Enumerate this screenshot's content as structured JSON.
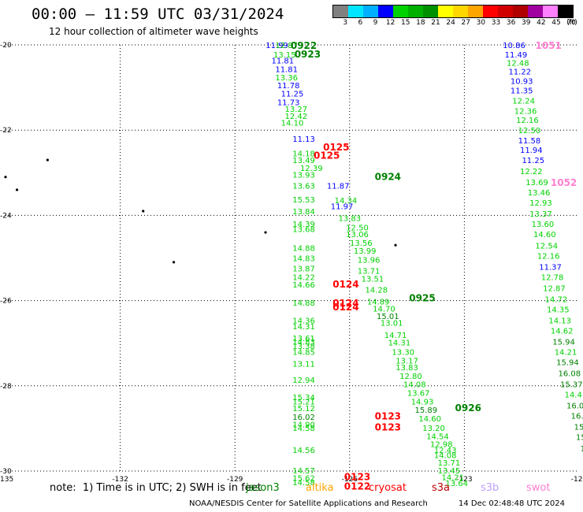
{
  "title": "00:00 – 11:59 UTC 03/31/2024",
  "subtitle": "12 hour collection of altimeter wave heights",
  "colorbar": {
    "unit_label": "(ft)",
    "ticks": [
      "3",
      "6",
      "9",
      "12",
      "15",
      "18",
      "21",
      "24",
      "27",
      "30",
      "33",
      "36",
      "39",
      "42",
      "45",
      "70"
    ],
    "colors": [
      "#808080",
      "#00e5ff",
      "#00b0ff",
      "#0000ff",
      "#00d100",
      "#00b000",
      "#009000",
      "#ffff00",
      "#ffd700",
      "#ffa500",
      "#ff0000",
      "#d00000",
      "#b00000",
      "#a000a0",
      "#ff80ff",
      "#000000"
    ]
  },
  "axes": {
    "x_labels": [
      "-135",
      "-132",
      "-129",
      "-126",
      "-123",
      "-120"
    ],
    "y_labels": [
      "-20",
      "-22",
      "-24",
      "-26",
      "-28",
      "-30"
    ],
    "lon_range": [
      -135,
      -120
    ],
    "lat_range": [
      -30,
      -20
    ]
  },
  "satellites": {
    "jason3": "#008000",
    "altika": "#ffa500",
    "cryosat": "#ff0000",
    "s3a": "#c00000",
    "s3b": "#c0a0ff",
    "swot": "#ff80d0"
  },
  "islands": [
    {
      "lon": -133.9,
      "lat": -22.7
    },
    {
      "lon": -135.0,
      "lat": -23.1
    },
    {
      "lon": -134.7,
      "lat": -23.4
    },
    {
      "lon": -131.4,
      "lat": -23.9
    },
    {
      "lon": -128.2,
      "lat": -24.4
    },
    {
      "lon": -130.6,
      "lat": -25.1
    },
    {
      "lon": -124.8,
      "lat": -24.7
    }
  ],
  "tracks": [
    {
      "points": [
        {
          "lon": -127.9,
          "lat": -20.0,
          "t": "11.99",
          "c": "#0000ff"
        },
        {
          "lon": -127.65,
          "lat": -20.0,
          "t": "12.87",
          "c": "#00b000"
        },
        {
          "lon": -127.7,
          "lat": -20.22,
          "t": "13.15",
          "c": "#00d100"
        },
        {
          "lon": -127.75,
          "lat": -20.36,
          "t": "11.81",
          "c": "#0000ff"
        },
        {
          "lon": -127.65,
          "lat": -20.56,
          "t": "11.81",
          "c": "#0000ff"
        },
        {
          "lon": -127.65,
          "lat": -20.76,
          "t": "13.36",
          "c": "#00d100"
        },
        {
          "lon": -127.6,
          "lat": -20.94,
          "t": "11.78",
          "c": "#0000ff"
        },
        {
          "lon": -127.5,
          "lat": -21.14,
          "t": "11.25",
          "c": "#0000ff"
        },
        {
          "lon": -127.6,
          "lat": -21.34,
          "t": "11.73",
          "c": "#0000ff"
        },
        {
          "lon": -127.4,
          "lat": -21.5,
          "t": "13.27",
          "c": "#00d100"
        },
        {
          "lon": -127.4,
          "lat": -21.66,
          "t": "12.42",
          "c": "#00d100"
        },
        {
          "lon": -127.5,
          "lat": -21.82,
          "t": "14.10",
          "c": "#00d100"
        },
        {
          "lon": -127.2,
          "lat": -22.2,
          "t": "11.13",
          "c": "#0000ff"
        },
        {
          "lon": -127.2,
          "lat": -22.54,
          "t": "14.18",
          "c": "#00d100"
        },
        {
          "lon": -127.2,
          "lat": -22.7,
          "t": "13.49",
          "c": "#00d100"
        },
        {
          "lon": -127.0,
          "lat": -22.88,
          "t": "12.39",
          "c": "#00d100"
        },
        {
          "lon": -127.2,
          "lat": -23.04,
          "t": "13.93",
          "c": "#00d100"
        },
        {
          "lon": -127.2,
          "lat": -23.3,
          "t": "13.63",
          "c": "#00d100"
        },
        {
          "lon": -126.3,
          "lat": -23.3,
          "t": "11.87",
          "c": "#0000ff"
        },
        {
          "lon": -126.1,
          "lat": -23.64,
          "t": "14.34",
          "c": "#00d100"
        },
        {
          "lon": -127.2,
          "lat": -23.62,
          "t": "15.53",
          "c": "#00d100"
        },
        {
          "lon": -126.2,
          "lat": -23.78,
          "t": "11.97",
          "c": "#0000ff"
        },
        {
          "lon": -127.2,
          "lat": -23.9,
          "t": "13.84",
          "c": "#00d100"
        },
        {
          "lon": -126.0,
          "lat": -24.06,
          "t": "13.83",
          "c": "#00d100"
        },
        {
          "lon": -127.2,
          "lat": -24.2,
          "t": "14.39",
          "c": "#00d100"
        },
        {
          "lon": -127.2,
          "lat": -24.32,
          "t": "13.68",
          "c": "#00d100"
        },
        {
          "lon": -125.8,
          "lat": -24.28,
          "t": "12.50",
          "c": "#00d100"
        },
        {
          "lon": -125.8,
          "lat": -24.44,
          "t": "13.06",
          "c": "#00d100"
        },
        {
          "lon": -125.7,
          "lat": -24.64,
          "t": "13.56",
          "c": "#00d100"
        },
        {
          "lon": -127.2,
          "lat": -24.76,
          "t": "14.88",
          "c": "#00d100"
        },
        {
          "lon": -125.6,
          "lat": -24.82,
          "t": "13.99",
          "c": "#00d100"
        },
        {
          "lon": -127.2,
          "lat": -25.0,
          "t": "14.83",
          "c": "#00d100"
        },
        {
          "lon": -125.5,
          "lat": -25.04,
          "t": "13.96",
          "c": "#00d100"
        },
        {
          "lon": -127.2,
          "lat": -25.24,
          "t": "13.87",
          "c": "#00d100"
        },
        {
          "lon": -125.5,
          "lat": -25.3,
          "t": "13.71",
          "c": "#00d100"
        },
        {
          "lon": -127.2,
          "lat": -25.44,
          "t": "14.22",
          "c": "#00d100"
        },
        {
          "lon": -125.4,
          "lat": -25.48,
          "t": "13.51",
          "c": "#00d100"
        },
        {
          "lon": -127.2,
          "lat": -25.62,
          "t": "14.66",
          "c": "#00d100"
        },
        {
          "lon": -125.3,
          "lat": -25.74,
          "t": "14.28",
          "c": "#00d100"
        },
        {
          "lon": -127.2,
          "lat": -26.04,
          "t": "14.88",
          "c": "#00d100"
        },
        {
          "lon": -125.25,
          "lat": -26.02,
          "t": "14.89",
          "c": "#00d100"
        },
        {
          "lon": -125.1,
          "lat": -26.18,
          "t": "14.70",
          "c": "#00d100"
        },
        {
          "lon": -125.0,
          "lat": -26.36,
          "t": "15.01",
          "c": "#008000"
        },
        {
          "lon": -127.2,
          "lat": -26.46,
          "t": "14.36",
          "c": "#00d100"
        },
        {
          "lon": -127.2,
          "lat": -26.6,
          "t": "14.31",
          "c": "#00d100"
        },
        {
          "lon": -124.9,
          "lat": -26.52,
          "t": "13.01",
          "c": "#00d100"
        },
        {
          "lon": -124.8,
          "lat": -26.8,
          "t": "14.71",
          "c": "#00d100"
        },
        {
          "lon": -127.2,
          "lat": -26.88,
          "t": "13.61",
          "c": "#00d100"
        },
        {
          "lon": -127.2,
          "lat": -26.96,
          "t": "14.83",
          "c": "#00d100"
        },
        {
          "lon": -127.2,
          "lat": -27.06,
          "t": "13.38",
          "c": "#00d100"
        },
        {
          "lon": -124.7,
          "lat": -26.98,
          "t": "14.31",
          "c": "#00d100"
        },
        {
          "lon": -127.2,
          "lat": -27.2,
          "t": "14.85",
          "c": "#00d100"
        },
        {
          "lon": -124.6,
          "lat": -27.2,
          "t": "13.30",
          "c": "#00d100"
        },
        {
          "lon": -124.5,
          "lat": -27.4,
          "t": "13.17",
          "c": "#00d100"
        },
        {
          "lon": -127.2,
          "lat": -27.48,
          "t": "13.11",
          "c": "#00d100"
        },
        {
          "lon": -124.5,
          "lat": -27.56,
          "t": "13.83",
          "c": "#00d100"
        },
        {
          "lon": -124.4,
          "lat": -27.76,
          "t": "12.80",
          "c": "#00d100"
        },
        {
          "lon": -127.2,
          "lat": -27.86,
          "t": "12.94",
          "c": "#00d100"
        },
        {
          "lon": -124.3,
          "lat": -27.96,
          "t": "14.08",
          "c": "#00d100"
        },
        {
          "lon": -124.2,
          "lat": -28.16,
          "t": "13.67",
          "c": "#00d100"
        },
        {
          "lon": -127.2,
          "lat": -28.26,
          "t": "15.34",
          "c": "#00d100"
        },
        {
          "lon": -127.2,
          "lat": -28.36,
          "t": "15.21",
          "c": "#00d100"
        },
        {
          "lon": -124.1,
          "lat": -28.36,
          "t": "14.93",
          "c": "#00d100"
        },
        {
          "lon": -127.2,
          "lat": -28.52,
          "t": "15.12",
          "c": "#00d100"
        },
        {
          "lon": -124.0,
          "lat": -28.56,
          "t": "15.89",
          "c": "#008000"
        },
        {
          "lon": -127.2,
          "lat": -28.72,
          "t": "16.02",
          "c": "#008000"
        },
        {
          "lon": -123.9,
          "lat": -28.76,
          "t": "14.60",
          "c": "#00d100"
        },
        {
          "lon": -127.2,
          "lat": -28.9,
          "t": "14.90",
          "c": "#00d100"
        },
        {
          "lon": -127.2,
          "lat": -28.98,
          "t": "14.58",
          "c": "#00d100"
        },
        {
          "lon": -123.8,
          "lat": -28.98,
          "t": "13.20",
          "c": "#00d100"
        },
        {
          "lon": -123.7,
          "lat": -29.18,
          "t": "14.54",
          "c": "#00d100"
        },
        {
          "lon": -123.6,
          "lat": -29.36,
          "t": "12.98",
          "c": "#00d100"
        },
        {
          "lon": -123.5,
          "lat": -29.5,
          "t": "12.43",
          "c": "#00d100"
        },
        {
          "lon": -127.2,
          "lat": -29.5,
          "t": "14.56",
          "c": "#00d100"
        },
        {
          "lon": -123.5,
          "lat": -29.62,
          "t": "14.08",
          "c": "#00d100"
        },
        {
          "lon": -123.4,
          "lat": -29.8,
          "t": "13.71",
          "c": "#00d100"
        },
        {
          "lon": -127.2,
          "lat": -29.98,
          "t": "14.57",
          "c": "#00d100"
        },
        {
          "lon": -123.4,
          "lat": -29.98,
          "t": "13.45",
          "c": "#00d100"
        },
        {
          "lon": -127.2,
          "lat": -30.16,
          "t": "15.62",
          "c": "#00d100"
        },
        {
          "lon": -123.3,
          "lat": -30.14,
          "t": "14.21",
          "c": "#00d100"
        },
        {
          "lon": -127.2,
          "lat": -30.26,
          "t": "14.58",
          "c": "#00d100"
        },
        {
          "lon": -123.2,
          "lat": -30.28,
          "t": "13.64",
          "c": "#00d100"
        }
      ]
    },
    {
      "points": [
        {
          "lon": -121.7,
          "lat": -20.0,
          "t": "10.86",
          "c": "#0000ff"
        },
        {
          "lon": -121.65,
          "lat": -20.22,
          "t": "11.49",
          "c": "#0000ff"
        },
        {
          "lon": -121.6,
          "lat": -20.42,
          "t": "12.48",
          "c": "#00d100"
        },
        {
          "lon": -121.55,
          "lat": -20.62,
          "t": "11.22",
          "c": "#0000ff"
        },
        {
          "lon": -121.5,
          "lat": -20.84,
          "t": "10.93",
          "c": "#0000ff"
        },
        {
          "lon": -121.5,
          "lat": -21.06,
          "t": "11.35",
          "c": "#0000ff"
        },
        {
          "lon": -121.45,
          "lat": -21.3,
          "t": "12.24",
          "c": "#00d100"
        },
        {
          "lon": -121.4,
          "lat": -21.54,
          "t": "12.36",
          "c": "#00d100"
        },
        {
          "lon": -121.35,
          "lat": -21.76,
          "t": "12.16",
          "c": "#00d100"
        },
        {
          "lon": -121.3,
          "lat": -22.0,
          "t": "12.50",
          "c": "#00d100"
        },
        {
          "lon": -121.3,
          "lat": -22.24,
          "t": "11.58",
          "c": "#0000ff"
        },
        {
          "lon": -121.25,
          "lat": -22.46,
          "t": "11.94",
          "c": "#0000ff"
        },
        {
          "lon": -121.2,
          "lat": -22.7,
          "t": "11.25",
          "c": "#0000ff"
        },
        {
          "lon": -121.25,
          "lat": -22.96,
          "t": "12.22",
          "c": "#00d100"
        },
        {
          "lon": -121.1,
          "lat": -23.22,
          "t": "13.69",
          "c": "#00d100"
        },
        {
          "lon": -121.05,
          "lat": -23.46,
          "t": "13.46",
          "c": "#00d100"
        },
        {
          "lon": -121.0,
          "lat": -23.7,
          "t": "12.93",
          "c": "#00d100"
        },
        {
          "lon": -121.0,
          "lat": -23.96,
          "t": "13.37",
          "c": "#00d100"
        },
        {
          "lon": -120.95,
          "lat": -24.2,
          "t": "13.60",
          "c": "#00d100"
        },
        {
          "lon": -120.9,
          "lat": -24.44,
          "t": "14.60",
          "c": "#00d100"
        },
        {
          "lon": -120.85,
          "lat": -24.7,
          "t": "12.54",
          "c": "#00d100"
        },
        {
          "lon": -120.8,
          "lat": -24.94,
          "t": "12.16",
          "c": "#00d100"
        },
        {
          "lon": -120.75,
          "lat": -25.2,
          "t": "11.37",
          "c": "#0000ff"
        },
        {
          "lon": -120.7,
          "lat": -25.44,
          "t": "12.78",
          "c": "#00d100"
        },
        {
          "lon": -120.65,
          "lat": -25.7,
          "t": "12.87",
          "c": "#00d100"
        },
        {
          "lon": -120.6,
          "lat": -25.96,
          "t": "14.72",
          "c": "#00d100"
        },
        {
          "lon": -120.55,
          "lat": -26.2,
          "t": "14.35",
          "c": "#00d100"
        },
        {
          "lon": -120.5,
          "lat": -26.46,
          "t": "14.13",
          "c": "#00d100"
        },
        {
          "lon": -120.45,
          "lat": -26.7,
          "t": "14.62",
          "c": "#00d100"
        },
        {
          "lon": -120.4,
          "lat": -26.96,
          "t": "15.94",
          "c": "#008000"
        },
        {
          "lon": -120.35,
          "lat": -27.2,
          "t": "14.21",
          "c": "#00d100"
        },
        {
          "lon": -120.3,
          "lat": -27.44,
          "t": "15.94",
          "c": "#008000"
        },
        {
          "lon": -120.25,
          "lat": -27.7,
          "t": "16.08",
          "c": "#008000"
        },
        {
          "lon": -120.2,
          "lat": -27.96,
          "t": "15.37",
          "c": "#008000"
        },
        {
          "lon": -120.15,
          "lat": -28.2,
          "t": "14.4",
          "c": "#00d100"
        },
        {
          "lon": -120.1,
          "lat": -28.46,
          "t": "16.0",
          "c": "#008000"
        },
        {
          "lon": -120.05,
          "lat": -28.7,
          "t": "16.",
          "c": "#008000"
        },
        {
          "lon": -120.0,
          "lat": -28.96,
          "t": "15",
          "c": "#008000"
        },
        {
          "lon": -119.95,
          "lat": -29.2,
          "t": "15",
          "c": "#008000"
        },
        {
          "lon": -119.9,
          "lat": -29.46,
          "t": "1",
          "c": "#008000"
        }
      ]
    }
  ],
  "time_labels": [
    {
      "lon": -127.2,
      "lat": -20.0,
      "t": "0922",
      "c": "#008000"
    },
    {
      "lon": -127.1,
      "lat": -20.2,
      "t": "0923",
      "c": "#008000"
    },
    {
      "lon": -126.35,
      "lat": -22.38,
      "t": "0125",
      "c": "#ff0000"
    },
    {
      "lon": -126.6,
      "lat": -22.58,
      "t": "0125",
      "c": "#ff0000"
    },
    {
      "lon": -125.0,
      "lat": -23.08,
      "t": "0924",
      "c": "#008000"
    },
    {
      "lon": -126.1,
      "lat": -25.6,
      "t": "0124",
      "c": "#ff0000"
    },
    {
      "lon": -126.1,
      "lat": -26.04,
      "t": "0124",
      "c": "#ff0000"
    },
    {
      "lon": -126.1,
      "lat": -26.14,
      "t": "0124",
      "c": "#ff0000"
    },
    {
      "lon": -124.1,
      "lat": -25.92,
      "t": "0925",
      "c": "#008000"
    },
    {
      "lon": -125.0,
      "lat": -28.7,
      "t": "0123",
      "c": "#ff0000"
    },
    {
      "lon": -125.0,
      "lat": -28.96,
      "t": "0123",
      "c": "#ff0000"
    },
    {
      "lon": -122.9,
      "lat": -28.5,
      "t": "0926",
      "c": "#008000"
    },
    {
      "lon": -125.8,
      "lat": -30.12,
      "t": "0123",
      "c": "#ff0000"
    },
    {
      "lon": -125.8,
      "lat": -30.34,
      "t": "0122",
      "c": "#ff0000"
    },
    {
      "lon": -120.8,
      "lat": -20.0,
      "t": "1051",
      "c": "#ff80d0"
    },
    {
      "lon": -120.4,
      "lat": -23.22,
      "t": "1052",
      "c": "#ff80d0"
    }
  ],
  "note": "note:  1) Time is in UTC; 2) SWH is in feet",
  "legend_labels": [
    "jason3",
    "altika",
    "cryosat",
    "s3a",
    "s3b",
    "swot"
  ],
  "credit": "NOAA/NESDIS Center for Satellite Applications and Research",
  "footer_timestamp": "14 Dec 02:48:48 UTC 2024"
}
